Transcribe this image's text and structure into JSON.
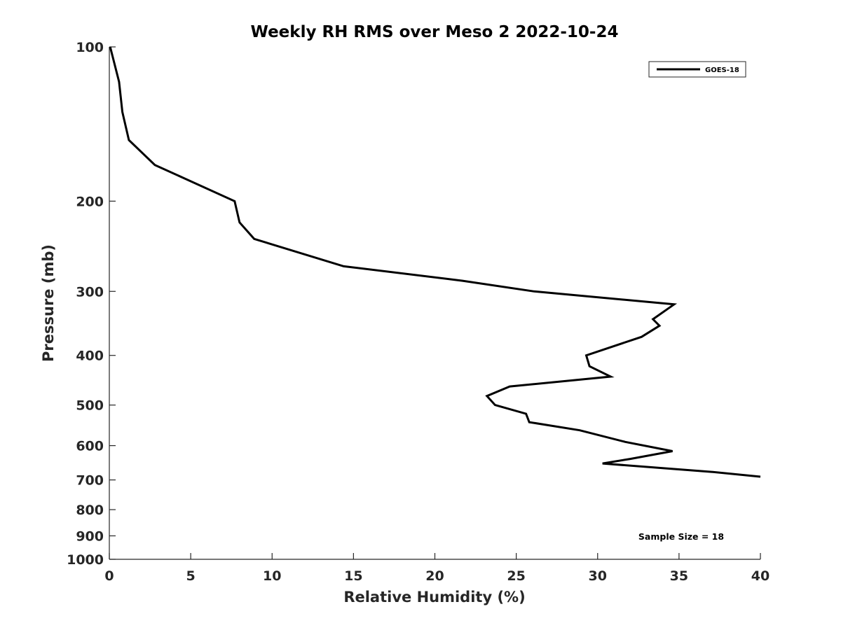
{
  "chart_data": {
    "type": "line",
    "title": "Weekly RH RMS over Meso 2 2022-10-24",
    "xlabel": "Relative Humidity (%)",
    "ylabel": "Pressure (mb)",
    "xlim": [
      0,
      40
    ],
    "ylim": [
      100,
      1000
    ],
    "y_scale": "log",
    "y_reversed": true,
    "xticks": [
      0,
      5,
      10,
      15,
      20,
      25,
      30,
      35,
      40
    ],
    "yticks": [
      100,
      200,
      300,
      400,
      500,
      600,
      700,
      800,
      900,
      1000
    ],
    "grid": false,
    "legend_position": "top-right",
    "annotation": "Sample Size = 18",
    "colors": {
      "series": "#000000",
      "axis": "#262626"
    },
    "series": [
      {
        "name": "GOES-18",
        "points": [
          [
            0.05,
            100
          ],
          [
            0.6,
            117
          ],
          [
            0.8,
            134
          ],
          [
            1.2,
            152
          ],
          [
            2.8,
            170
          ],
          [
            7.7,
            200
          ],
          [
            8.0,
            220
          ],
          [
            8.9,
            237
          ],
          [
            14.4,
            268
          ],
          [
            21.7,
            286
          ],
          [
            26.1,
            300
          ],
          [
            34.7,
            318
          ],
          [
            33.4,
            340
          ],
          [
            33.8,
            350
          ],
          [
            32.7,
            368
          ],
          [
            29.3,
            400
          ],
          [
            29.5,
            420
          ],
          [
            30.8,
            440
          ],
          [
            24.6,
            460
          ],
          [
            23.2,
            480
          ],
          [
            23.7,
            500
          ],
          [
            25.6,
            520
          ],
          [
            25.8,
            540
          ],
          [
            28.9,
            560
          ],
          [
            31.7,
            590
          ],
          [
            34.6,
            615
          ],
          [
            32.0,
            637
          ],
          [
            30.3,
            650
          ],
          [
            37.0,
            675
          ],
          [
            40.0,
            690
          ]
        ]
      }
    ]
  }
}
